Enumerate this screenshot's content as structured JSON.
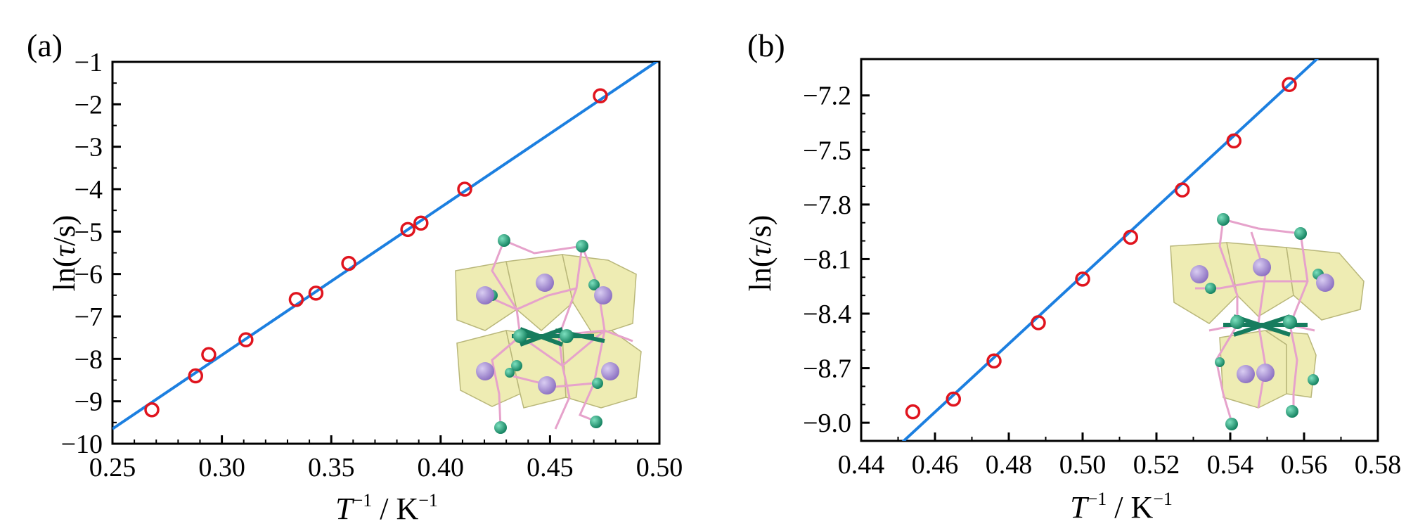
{
  "colors": {
    "fit_line": "#1c7fe0",
    "marker": "#e0141e",
    "axis": "#000000",
    "poly_fill": "#e9e8a8",
    "poly_stroke": "#b7b674",
    "ball_green": "#1fa37a",
    "ball_purple": "#a98fd3",
    "bond_pink": "#e7a3cc"
  },
  "chart_data": [
    {
      "type": "scatter",
      "panel_label": "(a)",
      "xlabel": {
        "var": "T",
        "sup1": "−1",
        "sep": " / K",
        "sup2": "−1"
      },
      "ylabel": {
        "pre": "ln(",
        "var": "τ",
        "post": "/s)"
      },
      "xlim": [
        0.25,
        0.5
      ],
      "ylim": [
        -10,
        -1
      ],
      "xticks": [
        0.25,
        0.3,
        0.35,
        0.4,
        0.45,
        0.5
      ],
      "xtick_labels": [
        "0.25",
        "0.30",
        "0.35",
        "0.40",
        "0.45",
        "0.50"
      ],
      "yticks": [
        -1,
        -2,
        -3,
        -4,
        -5,
        -6,
        -7,
        -8,
        -9,
        -10
      ],
      "ytick_labels": [
        "−1",
        "−2",
        "−3",
        "−4",
        "−5",
        "−6",
        "−7",
        "−8",
        "−9",
        "−10"
      ],
      "series": [
        {
          "name": "data",
          "x": [
            0.268,
            0.288,
            0.294,
            0.311,
            0.334,
            0.343,
            0.358,
            0.385,
            0.391,
            0.411,
            0.473
          ],
          "y": [
            -9.2,
            -8.4,
            -7.9,
            -7.55,
            -6.6,
            -6.45,
            -5.75,
            -4.95,
            -4.8,
            -4.0,
            -1.8
          ]
        }
      ],
      "fit": {
        "x": [
          0.25,
          0.5
        ],
        "y": [
          -9.65,
          -0.95
        ]
      },
      "inset": "molecular structure"
    },
    {
      "type": "scatter",
      "panel_label": "(b)",
      "xlabel": {
        "var": "T",
        "sup1": "−1",
        "sep": " / K",
        "sup2": "−1"
      },
      "ylabel": {
        "pre": "ln(",
        "var": "τ",
        "post": "/s)"
      },
      "xlim": [
        0.44,
        0.58
      ],
      "ylim": [
        -9.1,
        -7.0
      ],
      "xticks": [
        0.44,
        0.46,
        0.48,
        0.5,
        0.52,
        0.54,
        0.56,
        0.58
      ],
      "xtick_labels": [
        "0.44",
        "0.46",
        "0.48",
        "0.50",
        "0.52",
        "0.54",
        "0.56",
        "0.58"
      ],
      "yticks": [
        -7.2,
        -7.5,
        -7.8,
        -8.1,
        -8.4,
        -8.7,
        -9.0
      ],
      "ytick_labels": [
        "−7.2",
        "−7.5",
        "−7.8",
        "−8.1",
        "−8.4",
        "−8.7",
        "−9.0"
      ],
      "series": [
        {
          "name": "data",
          "x": [
            0.454,
            0.465,
            0.476,
            0.488,
            0.5,
            0.513,
            0.527,
            0.541,
            0.556
          ],
          "y": [
            -8.94,
            -8.87,
            -8.66,
            -8.45,
            -8.21,
            -7.98,
            -7.72,
            -7.45,
            -7.14
          ]
        }
      ],
      "fit": {
        "x": [
          0.451,
          0.564
        ],
        "y": [
          -9.11,
          -6.99
        ]
      },
      "inset": "molecular structure"
    }
  ]
}
